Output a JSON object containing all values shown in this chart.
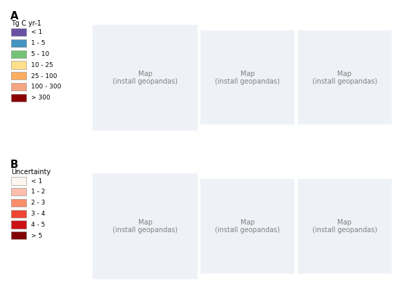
{
  "title_A": "A",
  "title_B": "B",
  "legend_A_title": "Tg C yr-1",
  "legend_A_labels": [
    "< 1",
    "1 - 5",
    "5 - 10",
    "10 - 25",
    "25 - 100",
    "100 - 300",
    "> 300"
  ],
  "legend_A_colors": [
    "#6a51a3",
    "#4393c3",
    "#74c476",
    "#fee08b",
    "#fdae61",
    "#f4a582",
    "#8b0000"
  ],
  "legend_B_title": "Uncertainty",
  "legend_B_labels": [
    "< 1",
    "1 - 2",
    "2 - 3",
    "3 - 4",
    "4 - 5",
    "> 5"
  ],
  "legend_B_colors": [
    "#fff5f0",
    "#fdbdab",
    "#fc8d6a",
    "#ef4533",
    "#cc1116",
    "#810004"
  ],
  "background_color": "#ffffff",
  "ocean_color": "#e8eef4",
  "land_color": "#d9d9d9",
  "border_color": "#555555",
  "fig_width": 5.68,
  "fig_height": 4.47
}
